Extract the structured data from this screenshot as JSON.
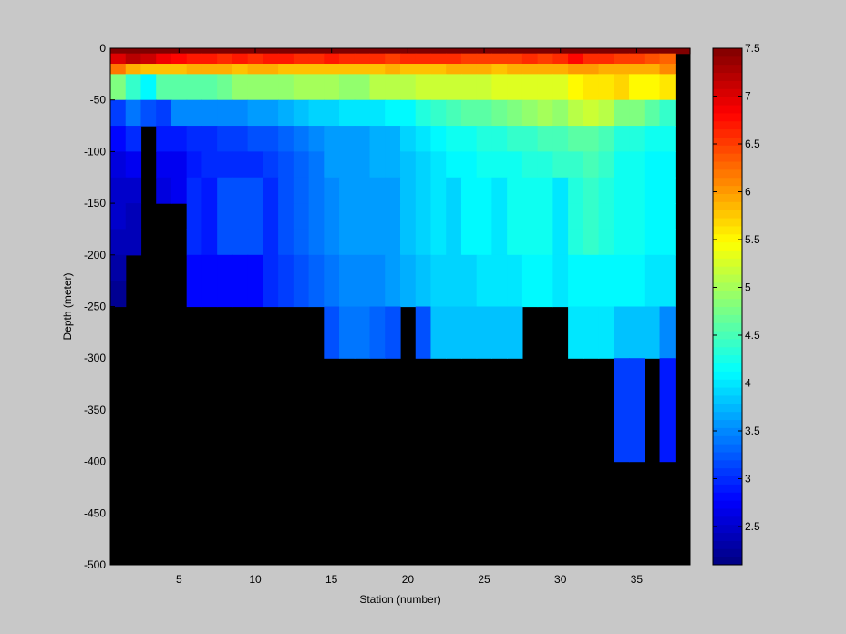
{
  "chart_data": {
    "type": "heatmap",
    "xlabel": "Station (number)",
    "ylabel": "Depth (meter)",
    "xlim": [
      1,
      38
    ],
    "ylim": [
      -500,
      0
    ],
    "x_ticks": [
      5,
      10,
      15,
      20,
      25,
      30,
      35
    ],
    "y_ticks": [
      0,
      -50,
      -100,
      -150,
      -200,
      -250,
      -300,
      -350,
      -400,
      -450,
      -500
    ],
    "colorbar": {
      "range": [
        2.1,
        7.5
      ],
      "ticks": [
        2.5,
        3,
        3.5,
        4,
        4.5,
        5,
        5.5,
        6,
        6.5,
        7,
        7.5
      ],
      "colormap": "jet-like"
    },
    "masked_color": "#000000",
    "background_color": "#c8c8c8",
    "cell_rows": [
      {
        "top": 0,
        "bottom": -5,
        "uniform": 7.6
      },
      {
        "top": -5,
        "bottom": -15,
        "values": [
          7.0,
          7.2,
          7.1,
          6.9,
          6.8,
          6.7,
          6.7,
          6.6,
          6.7,
          6.6,
          6.7,
          6.7,
          6.6,
          6.6,
          6.7,
          6.6,
          6.6,
          6.6,
          6.5,
          6.6,
          6.6,
          6.6,
          6.6,
          6.5,
          6.5,
          6.5,
          6.5,
          6.6,
          6.5,
          6.6,
          6.8,
          6.6,
          6.6,
          6.5,
          6.5,
          6.4,
          6.3
        ]
      },
      {
        "top": -15,
        "bottom": -25,
        "values": [
          6.2,
          5.9,
          5.8,
          5.8,
          5.8,
          5.9,
          5.9,
          5.9,
          5.8,
          5.9,
          5.9,
          5.8,
          5.8,
          5.8,
          5.8,
          5.8,
          5.8,
          5.8,
          5.9,
          5.8,
          5.8,
          5.8,
          5.9,
          5.9,
          5.9,
          5.8,
          5.9,
          5.9,
          5.9,
          5.9,
          6.0,
          6.0,
          5.9,
          5.9,
          5.9,
          5.9,
          6.1
        ]
      },
      {
        "top": -25,
        "bottom": -50,
        "values": [
          4.8,
          4.4,
          4.1,
          4.6,
          4.6,
          4.6,
          4.6,
          4.7,
          4.9,
          4.9,
          4.9,
          4.9,
          5.0,
          5.0,
          5.0,
          4.9,
          4.9,
          5.1,
          5.1,
          5.1,
          5.2,
          5.2,
          5.2,
          5.2,
          5.2,
          5.3,
          5.3,
          5.3,
          5.3,
          5.3,
          5.5,
          5.6,
          5.6,
          5.7,
          5.5,
          5.5,
          5.6
        ]
      },
      {
        "top": -50,
        "bottom": -75,
        "values": [
          3.1,
          3.4,
          3.2,
          3.1,
          3.5,
          3.5,
          3.5,
          3.5,
          3.5,
          3.6,
          3.6,
          3.7,
          3.8,
          3.9,
          3.9,
          4.0,
          4.0,
          4.0,
          4.1,
          4.1,
          4.3,
          4.4,
          4.5,
          4.6,
          4.6,
          4.7,
          4.8,
          4.9,
          5.0,
          4.9,
          5.1,
          5.2,
          5.1,
          4.8,
          4.8,
          4.6,
          4.4
        ]
      },
      {
        "top": -75,
        "bottom": -100,
        "values": [
          2.8,
          3.0,
          null,
          2.9,
          2.9,
          3.0,
          3.0,
          3.1,
          3.1,
          3.2,
          3.2,
          3.3,
          3.4,
          3.5,
          3.6,
          3.6,
          3.6,
          3.7,
          3.7,
          3.9,
          4.0,
          4.1,
          4.2,
          4.2,
          4.3,
          4.3,
          4.4,
          4.4,
          4.5,
          4.5,
          4.6,
          4.6,
          4.5,
          4.3,
          4.3,
          4.2,
          4.2
        ]
      },
      {
        "top": -100,
        "bottom": -125,
        "values": [
          2.6,
          2.7,
          null,
          2.7,
          2.7,
          2.9,
          3.0,
          3.0,
          3.0,
          3.0,
          3.1,
          3.2,
          3.3,
          3.4,
          3.6,
          3.6,
          3.6,
          3.7,
          3.7,
          3.8,
          3.9,
          4.0,
          4.1,
          4.1,
          4.2,
          4.2,
          4.2,
          4.3,
          4.3,
          4.4,
          4.4,
          4.5,
          4.4,
          4.2,
          4.2,
          4.1,
          4.1
        ]
      },
      {
        "top": -125,
        "bottom": -150,
        "values": [
          2.5,
          2.5,
          null,
          2.6,
          2.7,
          3.0,
          2.9,
          3.2,
          3.2,
          3.2,
          3.0,
          3.2,
          3.3,
          3.4,
          3.5,
          3.6,
          3.6,
          3.6,
          3.6,
          3.8,
          3.9,
          4.0,
          3.9,
          4.1,
          4.1,
          4.0,
          4.2,
          4.2,
          4.2,
          4.0,
          4.3,
          4.4,
          4.3,
          4.2,
          4.2,
          4.1,
          4.1
        ]
      },
      {
        "top": -150,
        "bottom": -175,
        "values": [
          2.5,
          2.4,
          null,
          null,
          null,
          3.0,
          2.9,
          3.2,
          3.2,
          3.2,
          3.0,
          3.2,
          3.3,
          3.4,
          3.5,
          3.6,
          3.6,
          3.6,
          3.6,
          3.8,
          3.9,
          4.0,
          3.9,
          4.1,
          4.1,
          4.0,
          4.2,
          4.2,
          4.2,
          4.0,
          4.3,
          4.4,
          4.3,
          4.2,
          4.2,
          4.1,
          4.1
        ]
      },
      {
        "top": -175,
        "bottom": -200,
        "values": [
          2.4,
          2.4,
          null,
          null,
          null,
          3.0,
          2.9,
          3.2,
          3.2,
          3.2,
          3.0,
          3.2,
          3.3,
          3.4,
          3.5,
          3.6,
          3.6,
          3.6,
          3.6,
          3.8,
          3.9,
          4.0,
          3.9,
          4.1,
          4.1,
          4.0,
          4.2,
          4.2,
          4.2,
          4.0,
          4.3,
          4.4,
          4.3,
          4.2,
          4.2,
          4.1,
          4.1
        ]
      },
      {
        "top": -200,
        "bottom": -225,
        "values": [
          2.3,
          null,
          null,
          null,
          null,
          2.8,
          2.8,
          2.8,
          2.8,
          2.8,
          3.0,
          3.1,
          3.2,
          3.3,
          3.4,
          3.5,
          3.5,
          3.5,
          3.6,
          3.7,
          3.8,
          3.9,
          3.9,
          3.9,
          4.0,
          4.0,
          4.0,
          4.1,
          4.1,
          4.0,
          4.1,
          4.1,
          4.1,
          4.1,
          4.1,
          4.0,
          4.0
        ]
      },
      {
        "top": -225,
        "bottom": -250,
        "values": [
          2.2,
          null,
          null,
          null,
          null,
          2.8,
          2.8,
          2.8,
          2.8,
          2.8,
          3.0,
          3.1,
          3.2,
          3.3,
          3.4,
          3.5,
          3.5,
          3.5,
          3.6,
          3.7,
          3.8,
          3.9,
          3.9,
          3.9,
          4.0,
          4.0,
          4.0,
          4.1,
          4.1,
          4.0,
          4.1,
          4.1,
          4.1,
          4.1,
          4.1,
          4.0,
          4.0
        ]
      },
      {
        "top": -250,
        "bottom": -300,
        "values": [
          null,
          null,
          null,
          null,
          null,
          null,
          null,
          null,
          null,
          null,
          null,
          null,
          null,
          null,
          3.2,
          3.4,
          3.4,
          3.3,
          3.2,
          null,
          3.2,
          3.8,
          3.8,
          3.8,
          3.8,
          3.8,
          3.8,
          null,
          null,
          null,
          4.0,
          4.0,
          4.0,
          3.8,
          3.8,
          3.8,
          3.5
        ]
      },
      {
        "top": -300,
        "bottom": -400,
        "values": [
          null,
          null,
          null,
          null,
          null,
          null,
          null,
          null,
          null,
          null,
          null,
          null,
          null,
          null,
          null,
          null,
          null,
          null,
          null,
          null,
          null,
          null,
          null,
          null,
          null,
          null,
          null,
          null,
          null,
          null,
          null,
          null,
          null,
          3.1,
          3.1,
          null,
          2.9
        ]
      }
    ]
  }
}
